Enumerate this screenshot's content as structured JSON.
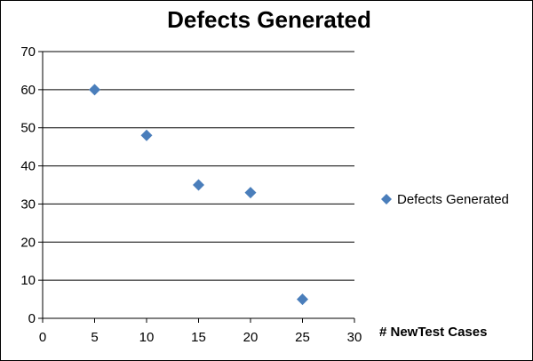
{
  "chart_data": {
    "type": "scatter",
    "title": "Defects Generated",
    "xlabel": "# NewTest Cases",
    "ylabel": "",
    "xlim": [
      0,
      30
    ],
    "ylim": [
      0,
      70
    ],
    "xticks": [
      "0",
      "5",
      "10",
      "15",
      "20",
      "25",
      "30"
    ],
    "yticks": [
      "0",
      "10",
      "20",
      "30",
      "40",
      "50",
      "60",
      "70"
    ],
    "grid": "horizontal",
    "legend_position": "right",
    "series": [
      {
        "name": "Defects Generated",
        "color": "#4a7ebb",
        "marker": "diamond",
        "points": [
          {
            "x": 5,
            "y": 60
          },
          {
            "x": 10,
            "y": 48
          },
          {
            "x": 15,
            "y": 35
          },
          {
            "x": 20,
            "y": 33
          },
          {
            "x": 25,
            "y": 5
          }
        ]
      }
    ]
  }
}
